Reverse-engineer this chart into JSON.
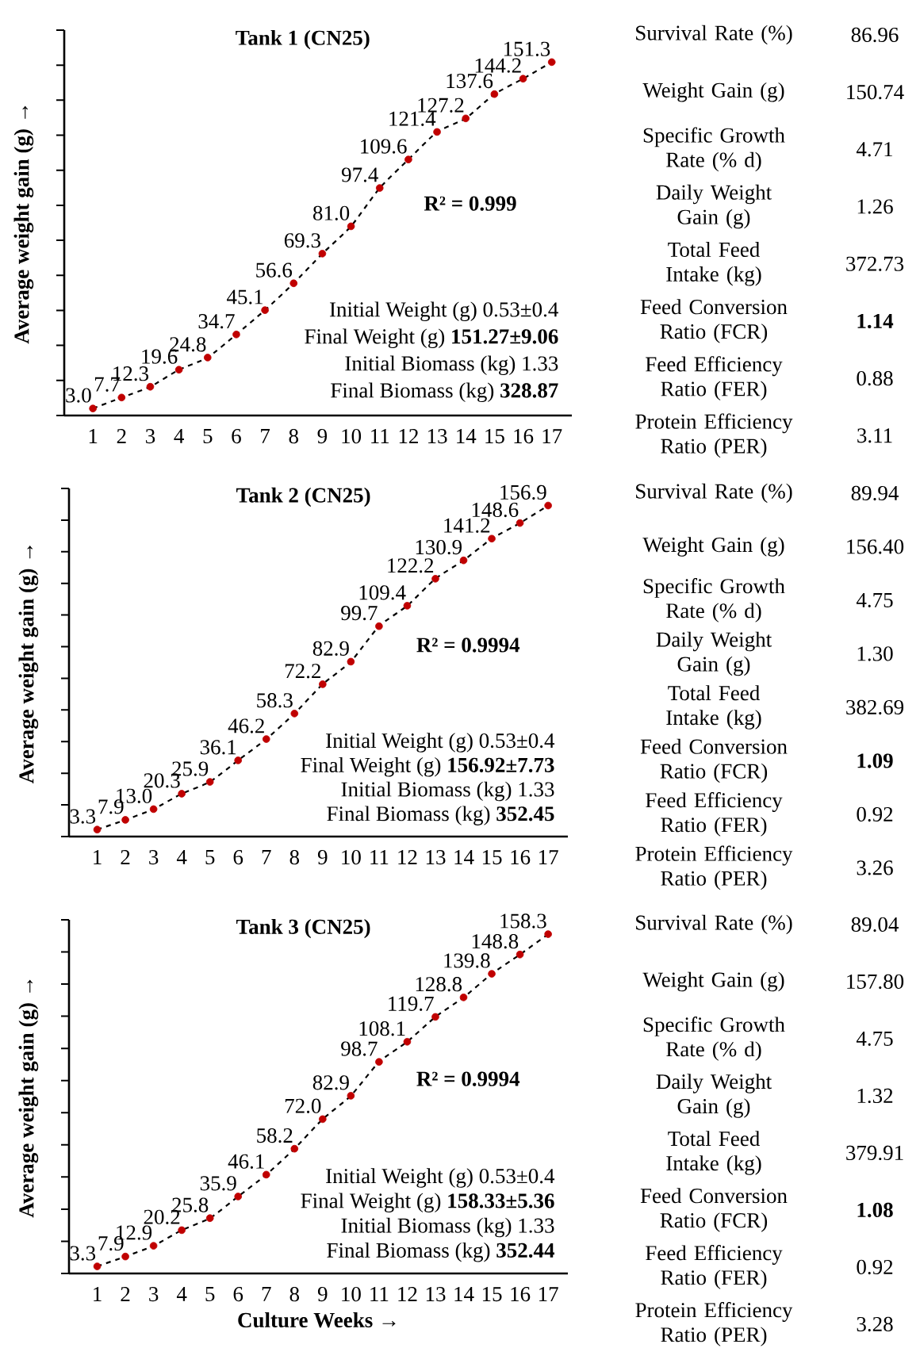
{
  "chart_data": [
    {
      "type": "scatter",
      "title": "Tank 1 (CN25)",
      "ylabel": "Average  weight gain (g) →",
      "categories": [
        "1",
        "2",
        "3",
        "4",
        "5",
        "6",
        "7",
        "8",
        "9",
        "10",
        "11",
        "12",
        "13",
        "14",
        "15",
        "16",
        "17"
      ],
      "ylim": [
        0,
        165
      ],
      "yticks": [
        {
          "value": 0,
          "label": null
        },
        {
          "value": 15,
          "label": null
        },
        {
          "value": 30,
          "label": null
        },
        {
          "value": 45,
          "label": null
        },
        {
          "value": 60,
          "label": null
        },
        {
          "value": 75,
          "label": null
        },
        {
          "value": 90,
          "label": null
        },
        {
          "value": 105,
          "label": null
        },
        {
          "value": 120,
          "label": null
        },
        {
          "value": 135,
          "label": null
        },
        {
          "value": 150,
          "label": null
        },
        {
          "value": 165,
          "label": null
        }
      ],
      "tick_labels": "x",
      "series": [
        {
          "type": "line",
          "color": "#000000",
          "line_style": "dashed",
          "marker": "none",
          "values": [
            3.0,
            7.7,
            12.3,
            19.6,
            24.8,
            34.7,
            45.1,
            56.6,
            69.3,
            81.0,
            97.4,
            109.6,
            121.4,
            127.2,
            137.6,
            144.2,
            151.3
          ]
        },
        {
          "type": "scatter",
          "color": "#c00000",
          "marker": "circle",
          "values": [
            3.0,
            7.7,
            12.3,
            19.6,
            24.8,
            34.7,
            45.1,
            56.6,
            69.3,
            81.0,
            97.4,
            109.6,
            121.4,
            127.2,
            137.6,
            144.2,
            151.3
          ],
          "value_labels": [
            "3.0",
            "7.7",
            "12.3",
            "19.6",
            "24.8",
            "34.7",
            "45.1",
            "56.6",
            "69.3",
            "81.0",
            "97.4",
            "109.6",
            "121.4",
            "127.2",
            "137.6",
            "144.2",
            "151.3"
          ]
        }
      ],
      "annotations": [
        "**R² = 0.999**",
        "Initial Weight (g) 0.53±0.4",
        "Final Weight (g) **151.27±9.06**",
        "Initial Biomass (kg) 1.33",
        "Final Biomass (kg) **328.87**"
      ]
    },
    {
      "type": "other",
      "annotations": [
        "Survival Rate (%)",
        "86.96",
        "Weight Gain (g)",
        "150.74",
        "Specific Growth Rate (% d)",
        "4.71",
        "Daily Weight Gain (g)",
        "1.26",
        "Total Feed Intake (kg)",
        "372.73",
        "Feed Conversion Ratio (FCR)",
        "**1.14**",
        "Feed Efficiency Ratio (FER)",
        "0.88",
        "Protein Efficiency Ratio (PER)",
        "3.11"
      ]
    },
    {
      "type": "scatter",
      "title": "Tank 2 (CN25)",
      "ylabel": "Average weight gain (g) →",
      "categories": [
        "1",
        "2",
        "3",
        "4",
        "5",
        "6",
        "7",
        "8",
        "9",
        "10",
        "11",
        "12",
        "13",
        "14",
        "15",
        "16",
        "17"
      ],
      "ylim": [
        0,
        165
      ],
      "yticks": [
        {
          "value": 0,
          "label": null
        },
        {
          "value": 15,
          "label": null
        },
        {
          "value": 30,
          "label": null
        },
        {
          "value": 45,
          "label": null
        },
        {
          "value": 60,
          "label": null
        },
        {
          "value": 75,
          "label": null
        },
        {
          "value": 90,
          "label": null
        },
        {
          "value": 105,
          "label": null
        },
        {
          "value": 120,
          "label": null
        },
        {
          "value": 135,
          "label": null
        },
        {
          "value": 150,
          "label": null
        },
        {
          "value": 165,
          "label": null
        }
      ],
      "tick_labels": "x",
      "series": [
        {
          "type": "line",
          "color": "#000000",
          "line_style": "dashed",
          "marker": "none",
          "values": [
            3.3,
            7.9,
            13.0,
            20.3,
            25.9,
            36.1,
            46.2,
            58.3,
            72.2,
            82.9,
            99.7,
            109.4,
            122.2,
            130.9,
            141.2,
            148.6,
            156.9
          ]
        },
        {
          "type": "scatter",
          "color": "#c00000",
          "marker": "circle",
          "values": [
            3.3,
            7.9,
            13.0,
            20.3,
            25.9,
            36.1,
            46.2,
            58.3,
            72.2,
            82.9,
            99.7,
            109.4,
            122.2,
            130.9,
            141.2,
            148.6,
            156.9
          ],
          "value_labels": [
            "3.3",
            "7.9",
            "13.0",
            "20.3",
            "25.9",
            "36.1",
            "46.2",
            "58.3",
            "72.2",
            "82.9",
            "99.7",
            "109.4",
            "122.2",
            "130.9",
            "141.2",
            "148.6",
            "156.9"
          ]
        }
      ],
      "annotations": [
        "**R² = 0.9994**",
        "Initial Weight (g) 0.53±0.4",
        "Final Weight (g) **156.92±7.73**",
        "Initial Biomass (kg) 1.33",
        "Final Biomass (kg) **352.45**"
      ]
    },
    {
      "type": "other",
      "annotations": [
        "Survival Rate (%)",
        "89.94",
        "Weight Gain (g)",
        "156.40",
        "Specific Growth Rate (% d)",
        "4.75",
        "Daily Weight Gain (g)",
        "1.30",
        "Total Feed Intake (kg)",
        "382.69",
        "Feed Conversion Ratio (FCR)",
        "**1.09**",
        "Feed Efficiency Ratio (FER)",
        "0.92",
        "Protein Efficiency Ratio (PER)",
        "3.26"
      ]
    },
    {
      "type": "scatter",
      "title": "Tank 3 (CN25)",
      "ylabel": "Average  weight gain (g) →",
      "xlabel": "Culture Weeks →",
      "categories": [
        "1",
        "2",
        "3",
        "4",
        "5",
        "6",
        "7",
        "8",
        "9",
        "10",
        "11",
        "12",
        "13",
        "14",
        "15",
        "16",
        "17"
      ],
      "ylim": [
        0,
        165
      ],
      "yticks": [
        {
          "value": 0,
          "label": null
        },
        {
          "value": 15,
          "label": null
        },
        {
          "value": 30,
          "label": null
        },
        {
          "value": 45,
          "label": null
        },
        {
          "value": 60,
          "label": null
        },
        {
          "value": 75,
          "label": null
        },
        {
          "value": 90,
          "label": null
        },
        {
          "value": 105,
          "label": null
        },
        {
          "value": 120,
          "label": null
        },
        {
          "value": 135,
          "label": null
        },
        {
          "value": 150,
          "label": null
        },
        {
          "value": 165,
          "label": null
        }
      ],
      "tick_labels": "x",
      "series": [
        {
          "type": "line",
          "color": "#000000",
          "line_style": "dashed",
          "marker": "none",
          "values": [
            3.3,
            7.9,
            12.9,
            20.2,
            25.8,
            35.9,
            46.1,
            58.2,
            72.0,
            82.9,
            98.7,
            108.1,
            119.7,
            128.8,
            139.8,
            148.8,
            158.3
          ]
        },
        {
          "type": "scatter",
          "color": "#c00000",
          "marker": "circle",
          "values": [
            3.3,
            7.9,
            12.9,
            20.2,
            25.8,
            35.9,
            46.1,
            58.2,
            72.0,
            82.9,
            98.7,
            108.1,
            119.7,
            128.8,
            139.8,
            148.8,
            158.3
          ],
          "value_labels": [
            "3.3",
            "7.9",
            "12.9",
            "20.2",
            "25.8",
            "35.9",
            "46.1",
            "58.2",
            "72.0",
            "82.9",
            "98.7",
            "108.1",
            "119.7",
            "128.8",
            "139.8",
            "148.8",
            "158.3"
          ]
        }
      ],
      "annotations": [
        "**R² = 0.9994**",
        "Initial Weight (g) 0.53±0.4",
        "Final Weight (g) **158.33±5.36**",
        "Initial Biomass (kg) 1.33",
        "Final Biomass (kg) **352.44**"
      ]
    },
    {
      "type": "other",
      "annotations": [
        "Survival Rate (%)",
        "89.04",
        "Weight Gain (g)",
        "157.80",
        "Specific Growth Rate (% d)",
        "4.75",
        "Daily Weight Gain (g)",
        "1.32",
        "Total Feed Intake (kg)",
        "379.91",
        "Feed Conversion Ratio (FCR)",
        "**1.08**",
        "Feed Efficiency Ratio (FER)",
        "0.92",
        "Protein Efficiency Ratio (PER)",
        "3.28"
      ]
    }
  ]
}
